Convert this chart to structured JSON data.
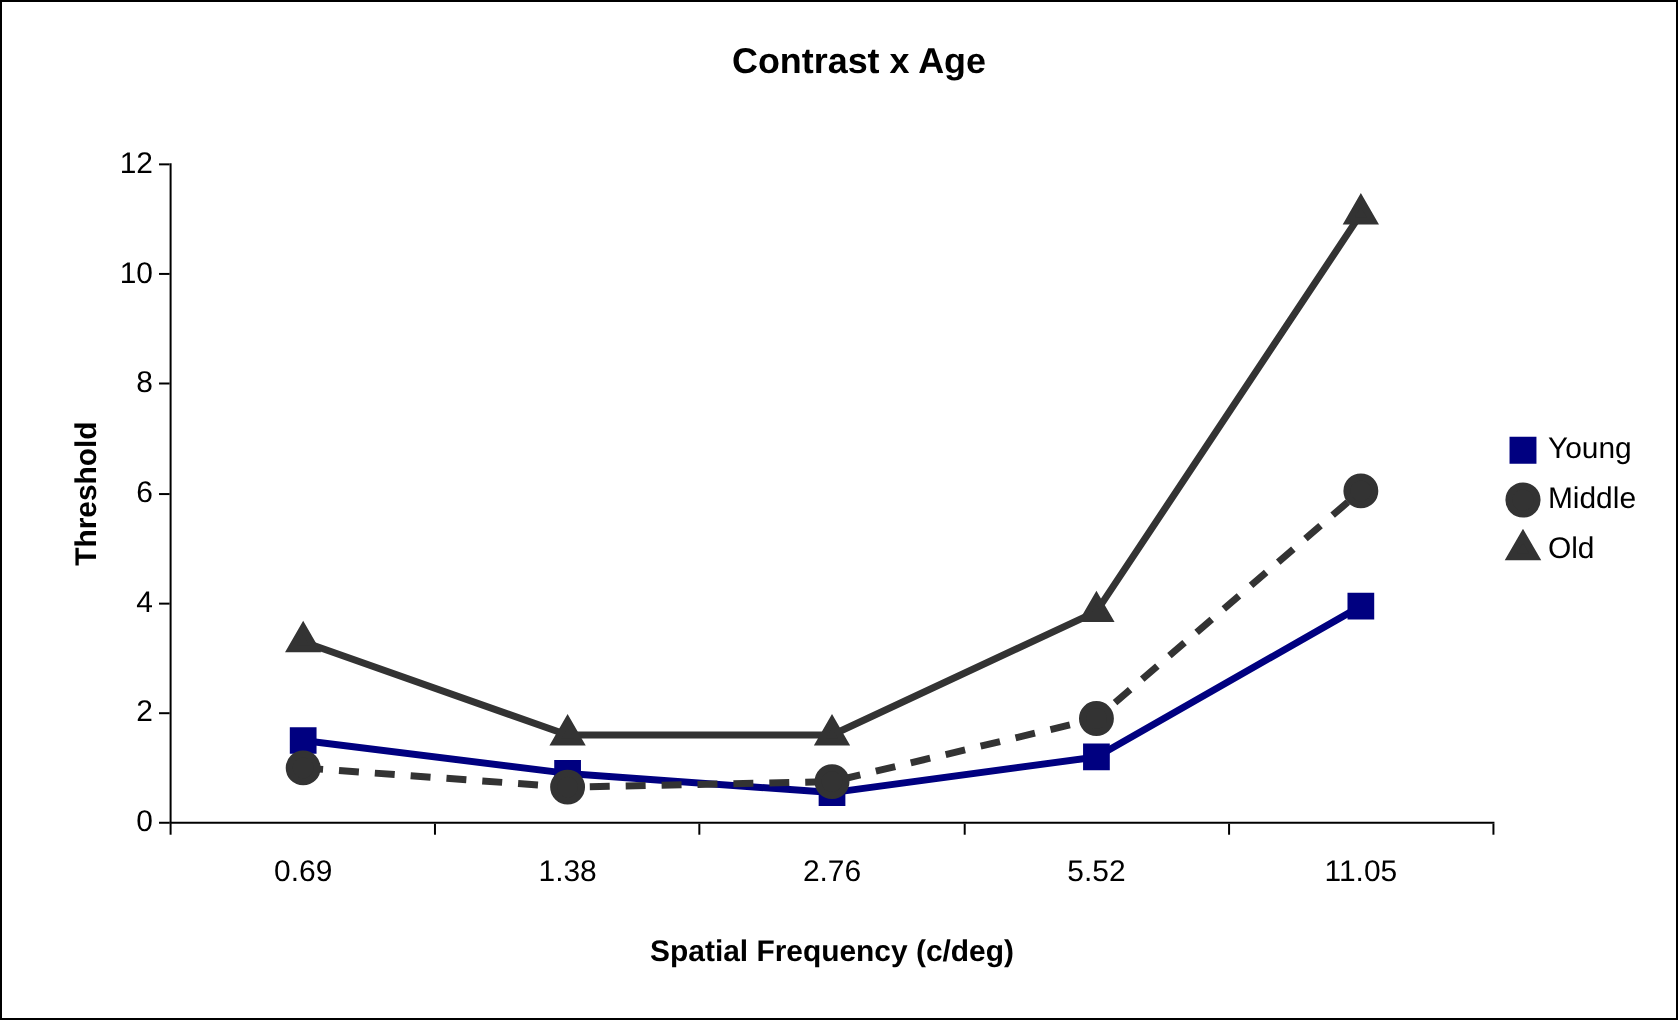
{
  "chart_data": {
    "type": "line",
    "title": "Contrast x Age",
    "xlabel": "Spatial Frequency (c/deg)",
    "ylabel": "Threshold",
    "categories": [
      "0.69",
      "1.38",
      "2.76",
      "5.52",
      "11.05"
    ],
    "series": [
      {
        "name": "Young",
        "color": "#000080",
        "marker": "square",
        "line_style": "solid",
        "values": [
          1.5,
          0.9,
          0.55,
          1.2,
          3.95
        ]
      },
      {
        "name": "Middle",
        "color": "#333333",
        "marker": "circle",
        "line_style": "dashed",
        "values": [
          1.0,
          0.65,
          0.75,
          1.9,
          6.05
        ]
      },
      {
        "name": "Old",
        "color": "#333333",
        "marker": "triangle",
        "line_style": "solid",
        "values": [
          3.3,
          1.6,
          1.6,
          3.85,
          11.1
        ]
      }
    ],
    "ylim": [
      0,
      12
    ],
    "yticks": [
      0,
      2,
      4,
      6,
      8,
      10,
      12
    ],
    "grid": false,
    "legend": "right"
  }
}
